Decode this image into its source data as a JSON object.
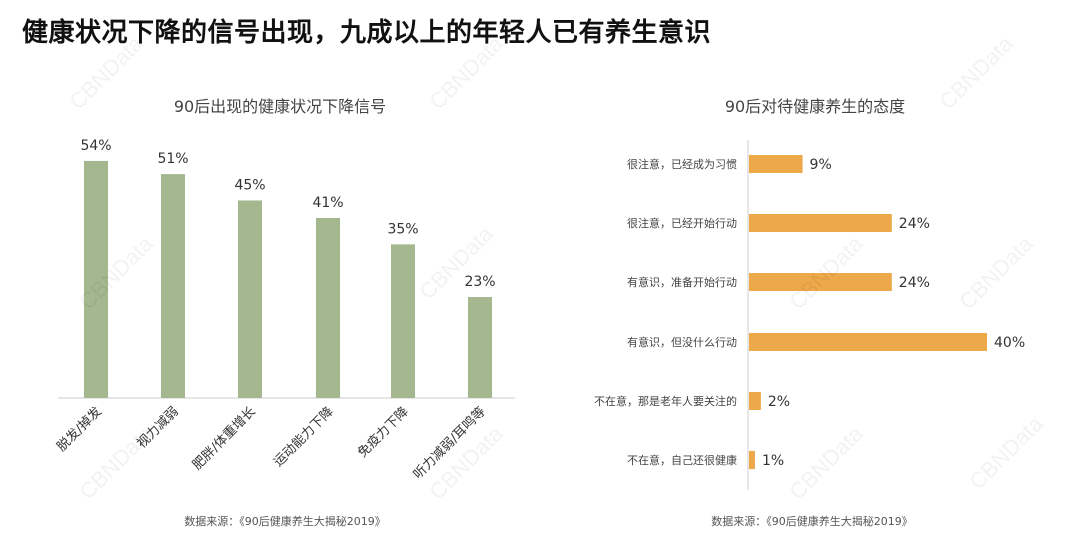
{
  "title": "健康状况下降的信号出现，九成以上的年轻人已有养生意识",
  "watermark": "CBNData",
  "chart_data": [
    {
      "type": "bar",
      "orientation": "vertical",
      "title": "90后出现的健康状况下降信号",
      "categories": [
        "脱发/掉发",
        "视力减弱",
        "肥胖/体重增长",
        "运动能力下降",
        "免疫力下降",
        "听力减弱/耳鸣等"
      ],
      "values": [
        54,
        51,
        45,
        41,
        35,
        23
      ],
      "value_labels": [
        "54%",
        "51%",
        "45%",
        "41%",
        "35%",
        "23%"
      ],
      "unit": "%",
      "ylim": [
        0,
        60
      ],
      "grid": false,
      "color": "#a5b78f",
      "source": "数据来源：《90后健康养生大揭秘2019》"
    },
    {
      "type": "bar",
      "orientation": "horizontal",
      "title": "90后对待健康养生的态度",
      "categories": [
        "很注意，已经成为习惯",
        "很注意，已经开始行动",
        "有意识，准备开始行动",
        "有意识，但没什么行动",
        "不在意，那是老年人要关注的",
        "不在意，自己还很健康"
      ],
      "values": [
        9,
        24,
        24,
        40,
        2,
        1
      ],
      "value_labels": [
        "9%",
        "24%",
        "24%",
        "40%",
        "2%",
        "1%"
      ],
      "unit": "%",
      "xlim": [
        0,
        45
      ],
      "grid": false,
      "color": "#eda84a",
      "source": "数据来源：《90后健康养生大揭秘2019》"
    }
  ]
}
